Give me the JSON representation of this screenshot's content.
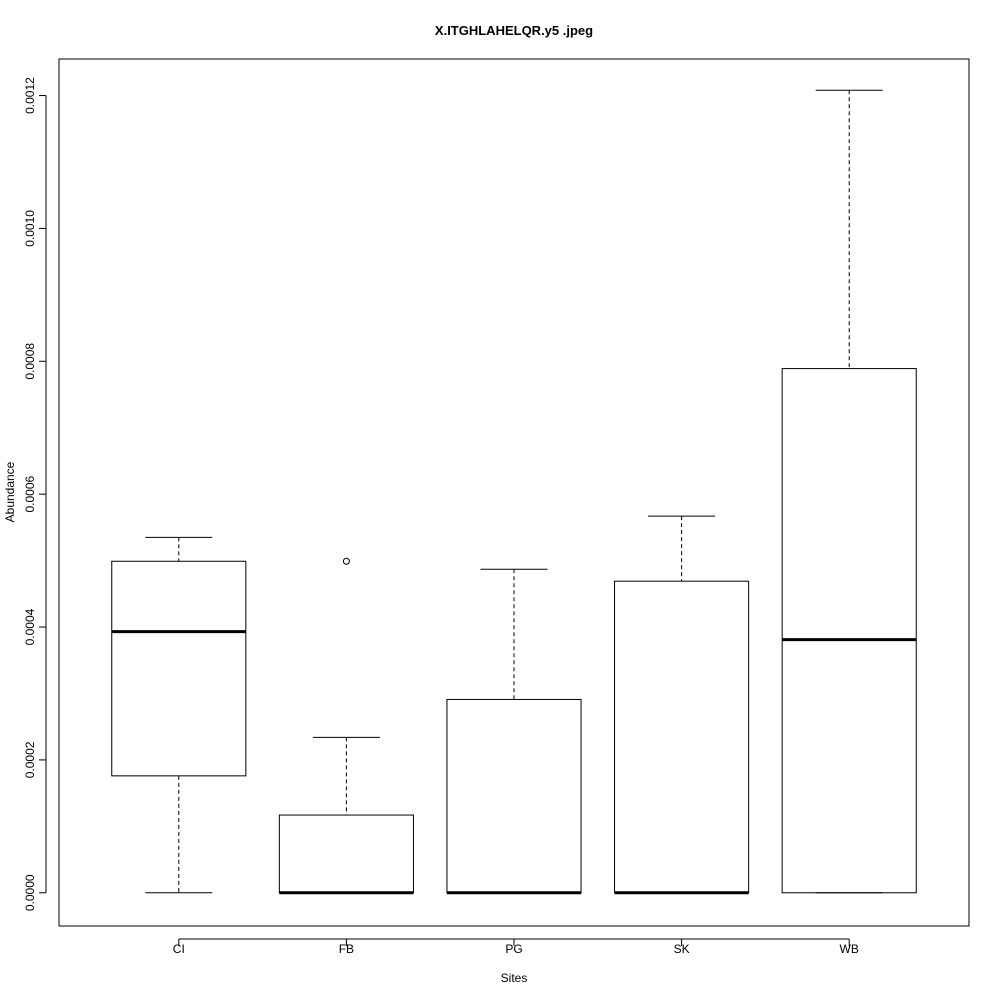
{
  "chart_data": {
    "type": "boxplot",
    "title": "X.ITGHLAHELQR.y5 .jpeg",
    "xlabel": "Sites",
    "ylabel": "Abundance",
    "ylim": [
      -5e-05,
      0.001255
    ],
    "y_ticks": [
      0,
      0.0002,
      0.0004,
      0.0006,
      0.0008,
      0.001,
      0.0012
    ],
    "y_tick_labels": [
      "0.0000",
      "0.0002",
      "0.0004",
      "0.0006",
      "0.0008",
      "0.0010",
      "0.0012"
    ],
    "categories": [
      "CI",
      "FB",
      "PG",
      "SK",
      "WB"
    ],
    "boxes": [
      {
        "category": "CI",
        "whisker_low": 0.0,
        "q1": 0.000176,
        "median": 0.000393,
        "q3": 0.000499,
        "whisker_high": 0.000535,
        "outliers": []
      },
      {
        "category": "FB",
        "whisker_low": 0.0,
        "q1": 0.0,
        "median": 0.0,
        "q3": 0.000117,
        "whisker_high": 0.000234,
        "outliers": [
          0.000499
        ]
      },
      {
        "category": "PG",
        "whisker_low": 0.0,
        "q1": 0.0,
        "median": 0.0,
        "q3": 0.000291,
        "whisker_high": 0.000487,
        "outliers": []
      },
      {
        "category": "SK",
        "whisker_low": 0.0,
        "q1": 0.0,
        "median": 0.0,
        "q3": 0.000469,
        "whisker_high": 0.000567,
        "outliers": []
      },
      {
        "category": "WB",
        "whisker_low": 0.0,
        "q1": 0.0,
        "median": 0.000381,
        "q3": 0.000789,
        "whisker_high": 0.001208,
        "outliers": []
      }
    ],
    "grid": false,
    "legend": "none"
  }
}
